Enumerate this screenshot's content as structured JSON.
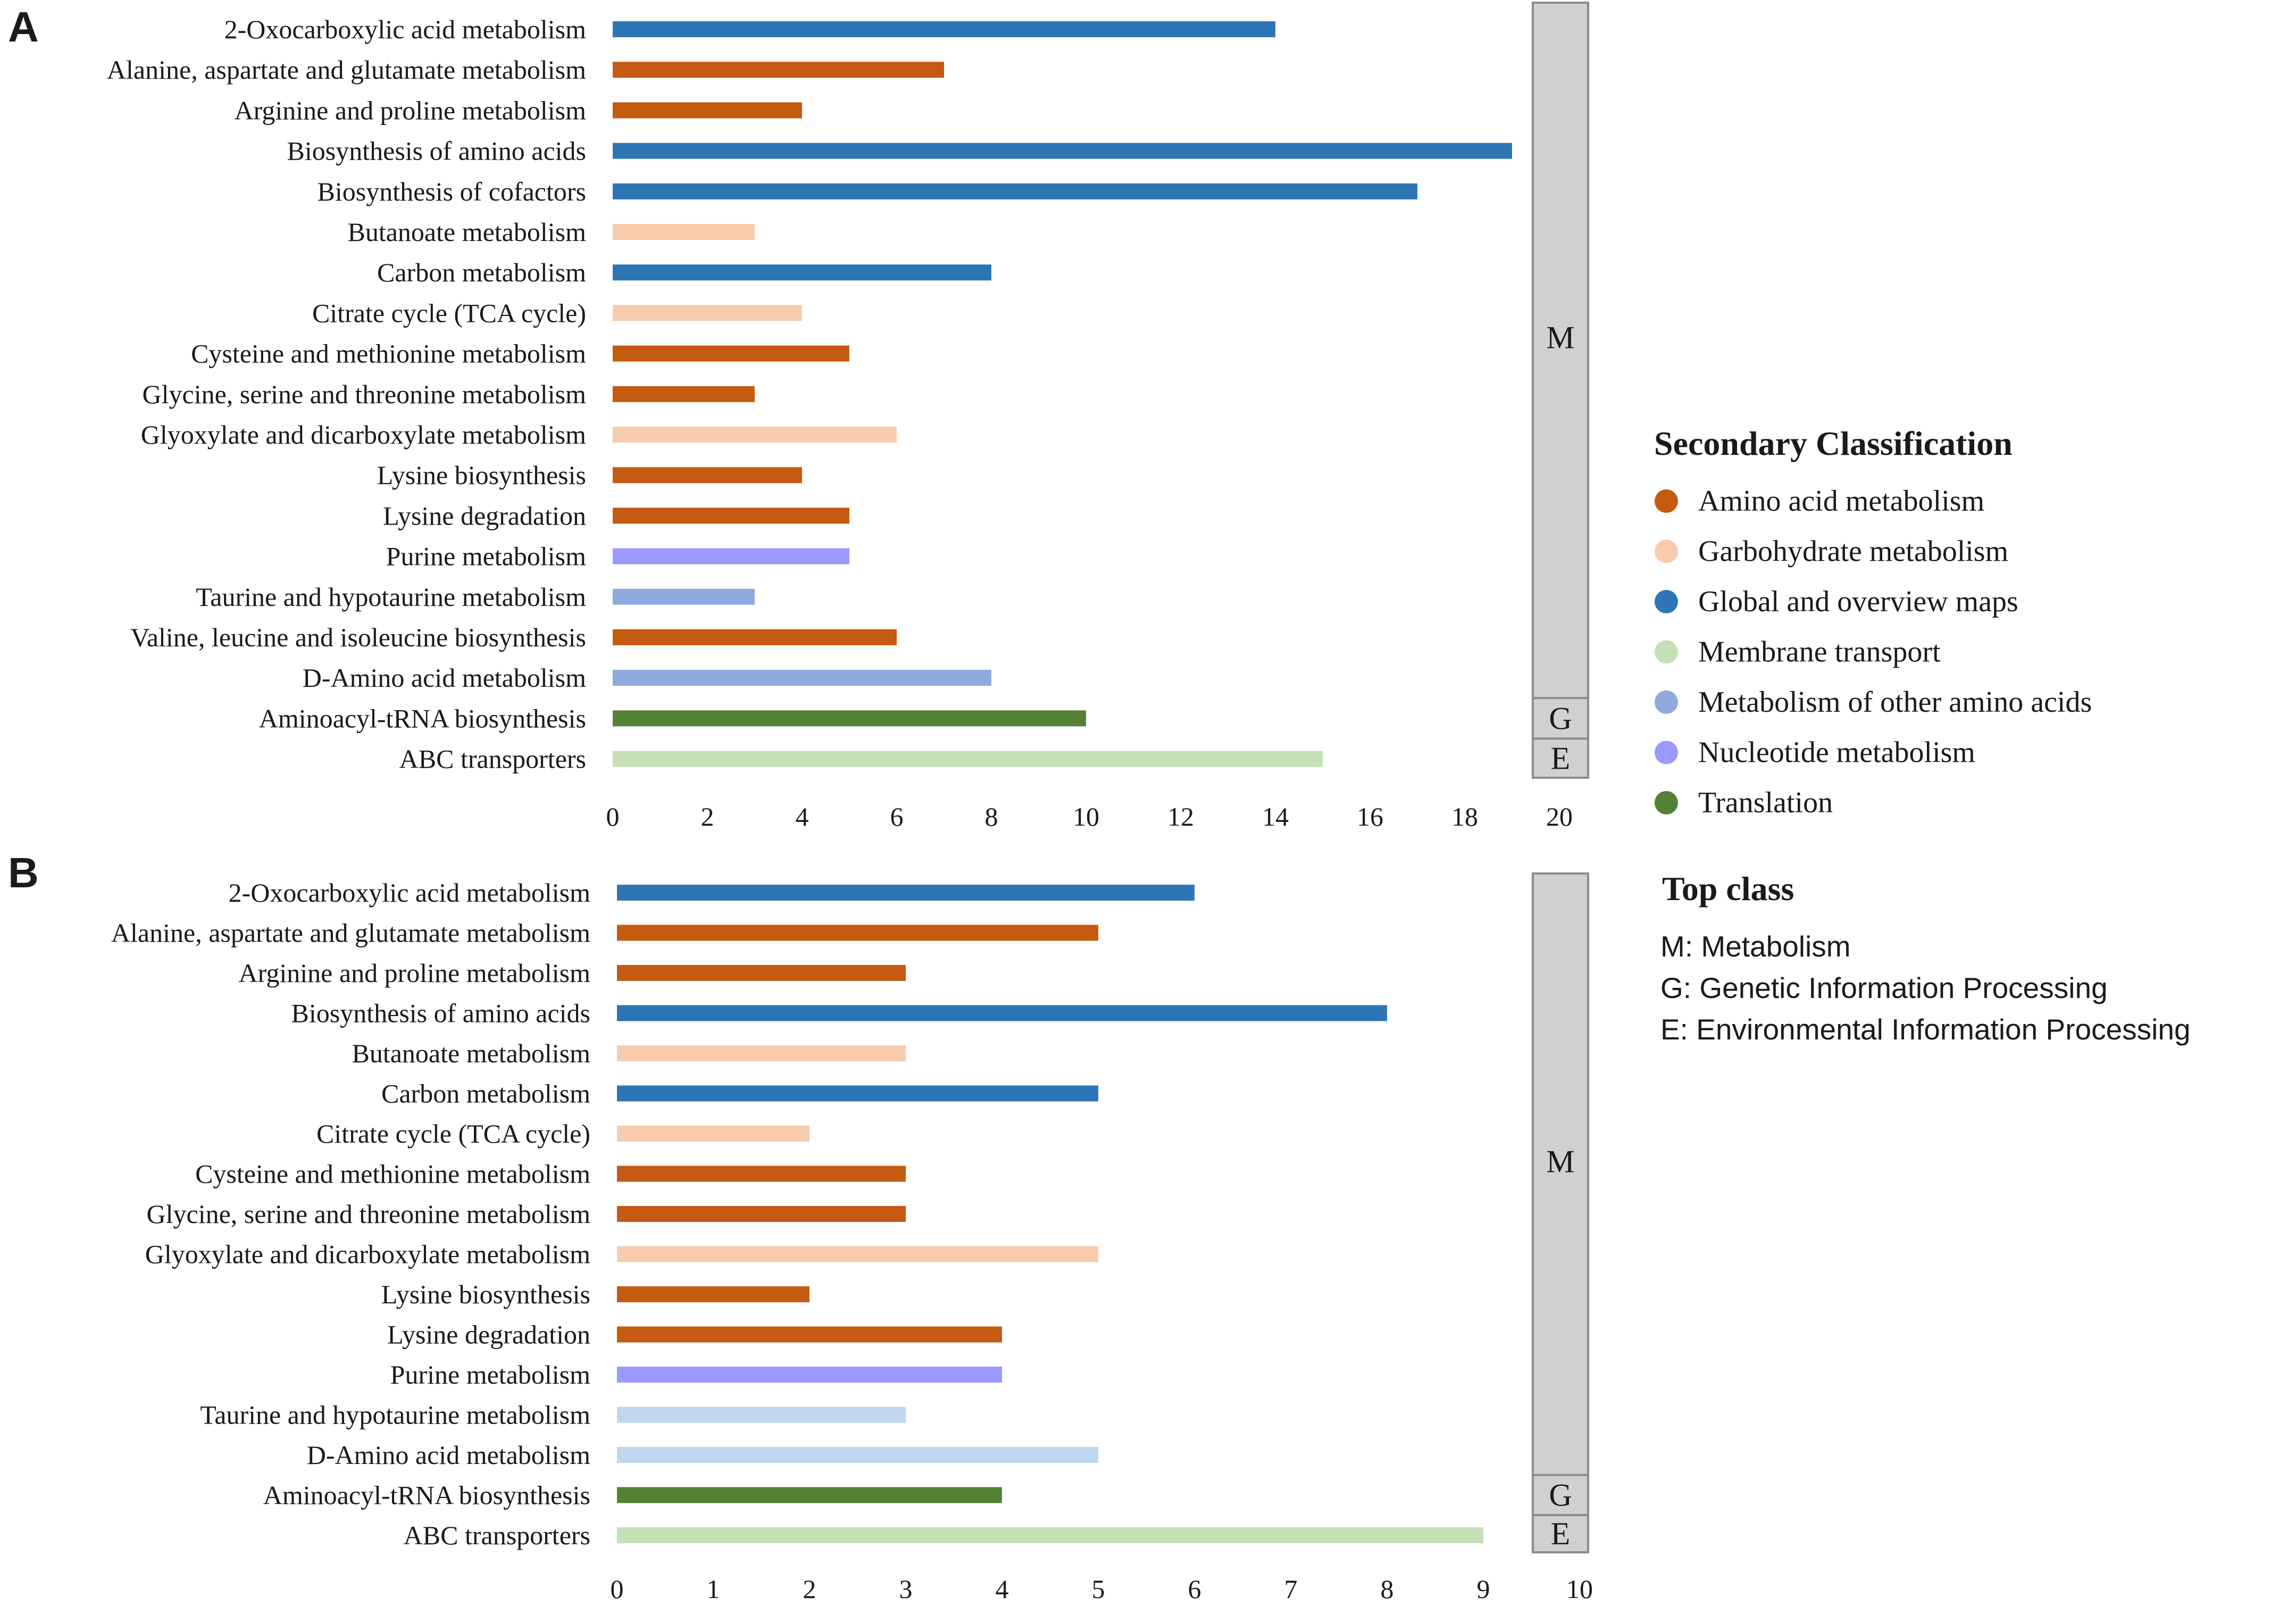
{
  "colors": {
    "amino": "#C55A11",
    "carb": "#F8CBAD",
    "global": "#2E75B6",
    "membrane": "#C5E0B4",
    "other_amino_a": "#8FAADC",
    "other_amino_b": "#BDD7EE",
    "nucleotide": "#9999FF",
    "translation": "#548235",
    "topclass_fill": "#D0D0D0",
    "topclass_stroke": "#8C8C8C"
  },
  "legend": {
    "secondary_title": "Secondary Classification",
    "secondary_items": [
      {
        "label": "Amino acid metabolism",
        "color": "#C55A11"
      },
      {
        "label": "Garbohydrate metabolism",
        "color": "#F8CBAD"
      },
      {
        "label": "Global and overview maps",
        "color": "#2E75B6"
      },
      {
        "label": "Membrane transport",
        "color": "#C5E0B4"
      },
      {
        "label": "Metabolism of other amino acids",
        "color": "#8FAADC"
      },
      {
        "label": "Nucleotide metabolism",
        "color": "#9999FF"
      },
      {
        "label": "Translation",
        "color": "#548235"
      }
    ],
    "top_title": "Top class",
    "top_items": [
      "M: Metabolism",
      "G: Genetic Information Processing",
      "E: Environmental Information Processing"
    ]
  },
  "chart_data": [
    {
      "panel": "A",
      "type": "bar",
      "orientation": "horizontal",
      "xlim": [
        0,
        20
      ],
      "xticks": [
        "0",
        "2",
        "4",
        "6",
        "8",
        "10",
        "12",
        "14",
        "16",
        "18",
        "20"
      ],
      "categories": [
        "2-Oxocarboxylic acid metabolism",
        "Alanine, aspartate and glutamate metabolism",
        "Arginine and proline metabolism",
        "Biosynthesis of amino acids",
        "Biosynthesis of cofactors",
        "Butanoate metabolism",
        "Carbon metabolism",
        "Citrate cycle (TCA cycle)",
        "Cysteine and methionine metabolism",
        "Glycine, serine and threonine metabolism",
        "Glyoxylate and dicarboxylate metabolism",
        "Lysine biosynthesis",
        "Lysine degradation",
        "Purine metabolism",
        "Taurine and hypotaurine metabolism",
        "Valine, leucine and isoleucine biosynthesis",
        "D-Amino acid metabolism",
        "Aminoacyl-tRNA biosynthesis",
        "ABC transporters"
      ],
      "values": [
        14,
        7,
        4,
        19,
        17,
        3,
        8,
        4,
        5,
        3,
        6,
        4,
        5,
        5,
        3,
        6,
        8,
        10,
        15
      ],
      "colors": [
        "#2E75B6",
        "#C55A11",
        "#C55A11",
        "#2E75B6",
        "#2E75B6",
        "#F8CBAD",
        "#2E75B6",
        "#F8CBAD",
        "#C55A11",
        "#C55A11",
        "#F8CBAD",
        "#C55A11",
        "#C55A11",
        "#9999FF",
        "#8FAADC",
        "#C55A11",
        "#8FAADC",
        "#548235",
        "#C5E0B4"
      ],
      "top_classes": [
        {
          "label": "M",
          "rows": 17
        },
        {
          "label": "G",
          "rows": 1
        },
        {
          "label": "E",
          "rows": 1
        }
      ]
    },
    {
      "panel": "B",
      "type": "bar",
      "orientation": "horizontal",
      "xlim": [
        0,
        10
      ],
      "xticks": [
        "0",
        "1",
        "2",
        "3",
        "4",
        "5",
        "6",
        "7",
        "8",
        "9",
        "10"
      ],
      "categories": [
        "2-Oxocarboxylic acid metabolism",
        "Alanine, aspartate and glutamate metabolism",
        "Arginine and proline metabolism",
        "Biosynthesis of amino acids",
        "Butanoate metabolism",
        "Carbon metabolism",
        "Citrate cycle (TCA cycle)",
        "Cysteine and methionine metabolism",
        "Glycine, serine and threonine metabolism",
        "Glyoxylate and dicarboxylate metabolism",
        "Lysine biosynthesis",
        "Lysine degradation",
        "Purine metabolism",
        "Taurine and hypotaurine metabolism",
        "D-Amino acid metabolism",
        "Aminoacyl-tRNA biosynthesis",
        "ABC transporters"
      ],
      "values": [
        6,
        5,
        3,
        8,
        3,
        5,
        2,
        3,
        3,
        5,
        2,
        4,
        4,
        3,
        5,
        4,
        9
      ],
      "colors": [
        "#2E75B6",
        "#C55A11",
        "#C55A11",
        "#2E75B6",
        "#F8CBAD",
        "#2E75B6",
        "#F8CBAD",
        "#C55A11",
        "#C55A11",
        "#F8CBAD",
        "#C55A11",
        "#C55A11",
        "#9999FF",
        "#BDD7EE",
        "#BDD7EE",
        "#548235",
        "#C5E0B4"
      ],
      "top_classes": [
        {
          "label": "M",
          "rows": 15
        },
        {
          "label": "G",
          "rows": 1
        },
        {
          "label": "E",
          "rows": 1
        }
      ]
    }
  ]
}
